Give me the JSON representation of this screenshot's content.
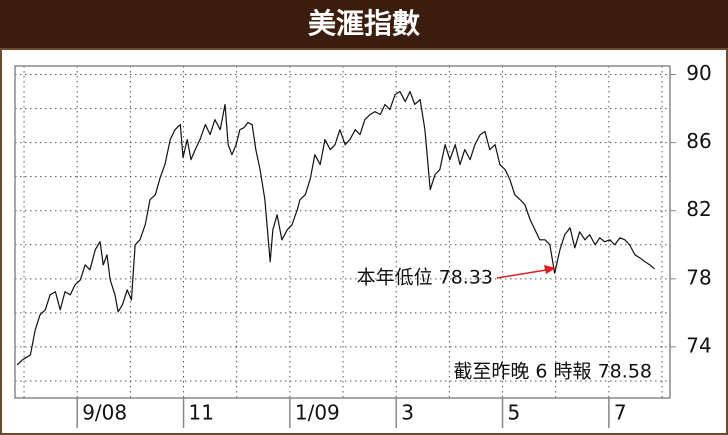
{
  "chart_data": {
    "type": "line",
    "title": "美滙指數",
    "annotations": [
      "本年低位 78.33",
      "截至昨晚 6 時報 78.58"
    ],
    "x": [
      0.87,
      0.97,
      1.12,
      1.21,
      1.3,
      1.4,
      1.49,
      1.59,
      1.68,
      1.77,
      1.87,
      1.96,
      2.06,
      2.15,
      2.24,
      2.34,
      2.43,
      2.49,
      2.56,
      2.62,
      2.71,
      2.77,
      2.85,
      2.94,
      3.02,
      3.09,
      3.18,
      3.28,
      3.37,
      3.47,
      3.56,
      3.65,
      3.75,
      3.84,
      3.94,
      3.99,
      4.07,
      4.14,
      4.22,
      4.31,
      4.41,
      4.5,
      4.59,
      4.69,
      4.78,
      4.84,
      4.91,
      4.99,
      5.06,
      5.14,
      5.21,
      5.29,
      5.36,
      5.44,
      5.53,
      5.63,
      5.68,
      5.76,
      5.85,
      5.95,
      6.04,
      6.14,
      6.19,
      6.29,
      6.38,
      6.47,
      6.57,
      6.66,
      6.76,
      6.85,
      6.94,
      7.04,
      7.13,
      7.23,
      7.32,
      7.41,
      7.51,
      7.6,
      7.7,
      7.79,
      7.88,
      7.98,
      8.07,
      8.17,
      8.26,
      8.35,
      8.45,
      8.54,
      8.64,
      8.73,
      8.82,
      8.92,
      9.01,
      9.11,
      9.2,
      9.29,
      9.39,
      9.48,
      9.58,
      9.67,
      9.76,
      9.86,
      9.95,
      10.05,
      10.14,
      10.23,
      10.33,
      10.42,
      10.52,
      10.61,
      10.7,
      10.8,
      10.89,
      10.98,
      11.08,
      11.17,
      11.27,
      11.36,
      11.45,
      11.55,
      11.64,
      11.74,
      11.83,
      11.92,
      12.02,
      12.11,
      12.21,
      12.3,
      12.39,
      12.49,
      12.58,
      12.68,
      12.77,
      12.86
    ],
    "series": [
      {
        "color": "#111111",
        "values": [
          72.94,
          73.24,
          73.53,
          75.0,
          75.88,
          76.18,
          77.06,
          77.24,
          76.18,
          77.24,
          77.06,
          77.65,
          77.94,
          78.82,
          78.53,
          79.71,
          80.18,
          78.82,
          79.41,
          77.94,
          77.06,
          76.06,
          76.47,
          77.35,
          76.76,
          80.0,
          80.29,
          81.18,
          82.65,
          82.94,
          83.94,
          84.71,
          86.18,
          86.76,
          87.06,
          85.12,
          86.18,
          85.0,
          85.59,
          86.18,
          87.06,
          86.47,
          87.35,
          86.76,
          88.24,
          85.88,
          85.29,
          85.88,
          86.76,
          86.88,
          87.18,
          87.06,
          85.59,
          84.41,
          82.65,
          79.0,
          80.88,
          81.76,
          80.29,
          80.88,
          81.18,
          82.06,
          82.65,
          82.94,
          83.82,
          85.29,
          84.71,
          86.18,
          85.59,
          85.88,
          86.76,
          85.88,
          86.18,
          86.76,
          86.47,
          87.35,
          87.65,
          87.82,
          87.65,
          88.24,
          87.94,
          88.82,
          89.0,
          88.41,
          89.0,
          88.24,
          88.53,
          86.76,
          83.24,
          84.12,
          84.41,
          85.88,
          85.0,
          85.88,
          84.71,
          85.59,
          85.0,
          85.88,
          86.47,
          86.65,
          85.59,
          85.88,
          84.71,
          84.41,
          83.82,
          82.94,
          82.65,
          82.35,
          81.47,
          80.88,
          80.29,
          80.29,
          80.0,
          78.33,
          79.71,
          80.59,
          81.0,
          79.82,
          80.76,
          80.29,
          80.59,
          80.0,
          80.41,
          80.18,
          80.29,
          80.0,
          80.41,
          80.29,
          80.0,
          79.41,
          79.24,
          79.0,
          78.82,
          78.58
        ]
      }
    ],
    "xlim": [
      0.83,
      13.15
    ],
    "ylim": [
      71,
      90.5
    ],
    "xticks": [
      {
        "value": 2,
        "label": "9/08"
      },
      {
        "value": 4,
        "label": "11"
      },
      {
        "value": 6,
        "label": "1/09"
      },
      {
        "value": 8,
        "label": "3"
      },
      {
        "value": 10,
        "label": "5"
      },
      {
        "value": 12,
        "label": "7"
      }
    ],
    "yticks": [
      74,
      78,
      82,
      86,
      90
    ],
    "xgrid": [
      1,
      2,
      3,
      4,
      5,
      6,
      7,
      8,
      9,
      10,
      11,
      12,
      13
    ],
    "ygrid": [
      72,
      74,
      76,
      78,
      80,
      82,
      84,
      86,
      88,
      90
    ],
    "grid": true,
    "annotation_color": "#e02020"
  }
}
